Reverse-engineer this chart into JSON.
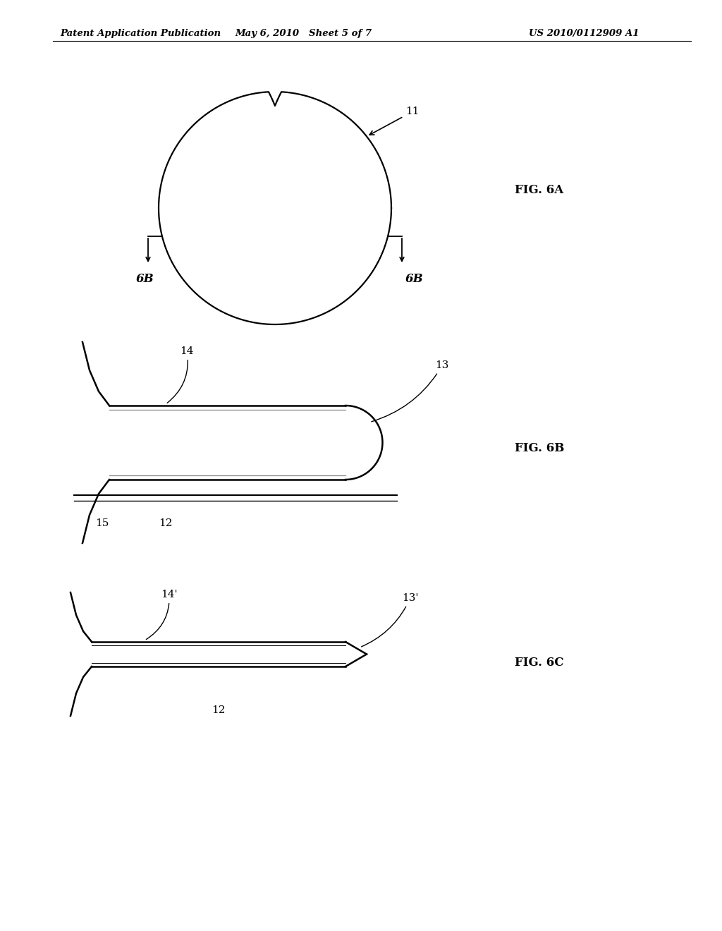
{
  "background_color": "#ffffff",
  "header_left": "Patent Application Publication",
  "header_center": "May 6, 2010   Sheet 5 of 7",
  "header_right": "US 2010/0112909 A1",
  "fig6a_label": "FIG. 6A",
  "fig6b_label": "FIG. 6B",
  "fig6c_label": "FIG. 6C",
  "label_6b_left": "6B",
  "label_6b_right": "6B",
  "label_11": "11",
  "label_12": "12",
  "label_13": "13",
  "label_14": "14",
  "label_15": "15",
  "label_13p": "13'",
  "label_14p": "14'",
  "label_12c": "12"
}
